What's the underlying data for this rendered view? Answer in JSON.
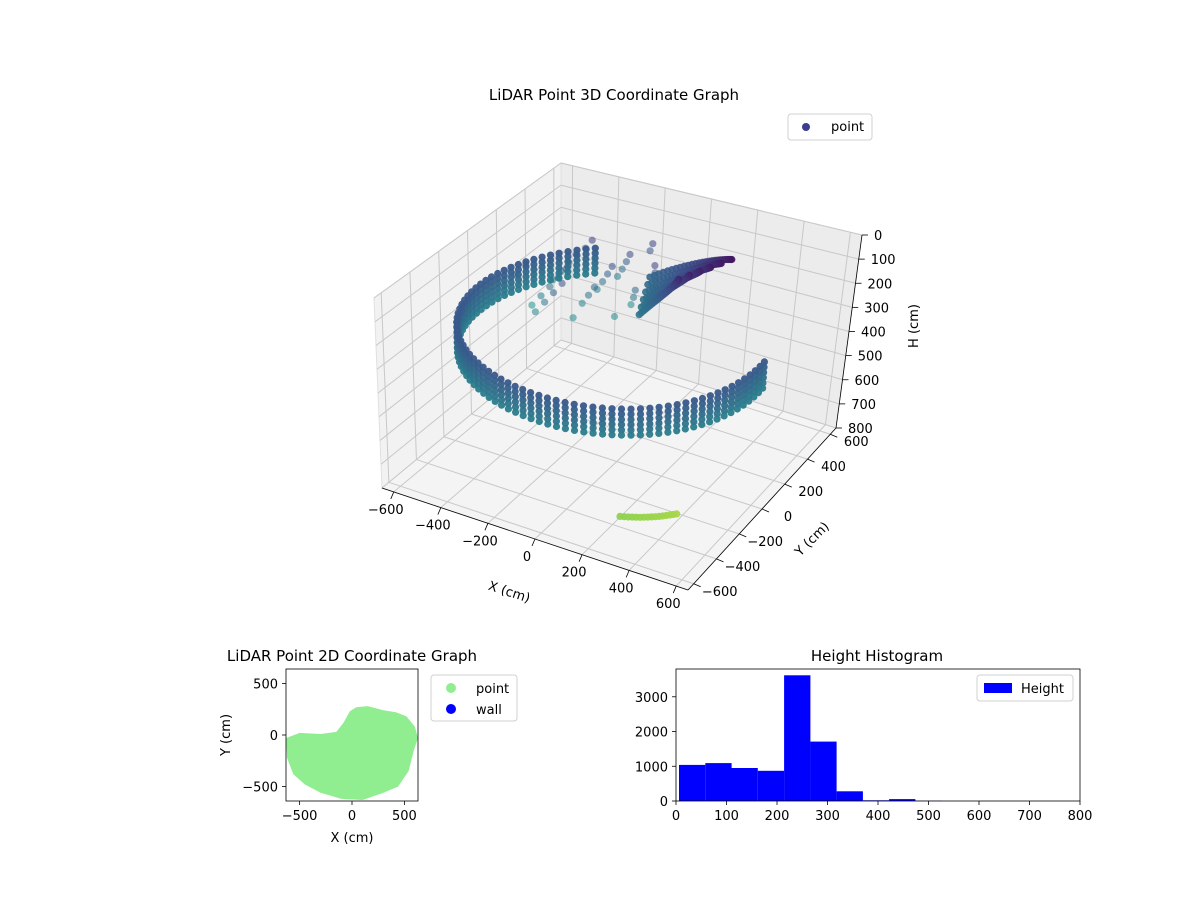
{
  "chart_data": [
    {
      "type": "scatter",
      "projection": "3d",
      "title": "LiDAR Point 3D Coordinate Graph",
      "xlabel": "X (cm)",
      "ylabel": "Y (cm)",
      "zlabel": "H (cm)",
      "xlim": [
        -650,
        650
      ],
      "ylim": [
        -650,
        650
      ],
      "zlim": [
        800,
        0
      ],
      "xticks": [
        -600,
        -400,
        -200,
        0,
        200,
        400,
        600
      ],
      "yticks": [
        -600,
        -400,
        -200,
        0,
        200,
        400,
        600
      ],
      "zticks": [
        0,
        100,
        200,
        300,
        400,
        500,
        600,
        700,
        800
      ],
      "colormap": "viridis",
      "grid": true,
      "legend_position": "upper-right",
      "series": [
        {
          "name": "point",
          "color": "#3b3f8c",
          "description_samples": {
            "ring_radius_cm": 600,
            "ring_height_cm": [
              250,
              300
            ],
            "inner_sweep_height_cm": [
              0,
              200
            ],
            "floor_arc_height_cm": [
              650,
              700
            ]
          }
        }
      ]
    },
    {
      "type": "scatter",
      "title": "LiDAR Point 2D Coordinate Graph",
      "xlabel": "X (cm)",
      "ylabel": "Y (cm)",
      "xlim": [
        -630,
        630
      ],
      "ylim": [
        -640,
        640
      ],
      "xticks": [
        -500,
        0,
        500
      ],
      "yticks": [
        -500,
        0,
        500
      ],
      "legend_position": "outside-right",
      "series": [
        {
          "name": "point",
          "color": "#90ee90",
          "outline": [
            [
              -630,
              -30
            ],
            [
              -500,
              20
            ],
            [
              -300,
              10
            ],
            [
              -150,
              30
            ],
            [
              -80,
              120
            ],
            [
              -20,
              230
            ],
            [
              40,
              270
            ],
            [
              150,
              280
            ],
            [
              300,
              240
            ],
            [
              420,
              220
            ],
            [
              520,
              180
            ],
            [
              600,
              80
            ],
            [
              630,
              -30
            ],
            [
              590,
              -150
            ],
            [
              540,
              -350
            ],
            [
              440,
              -500
            ],
            [
              300,
              -560
            ],
            [
              100,
              -630
            ],
            [
              -100,
              -620
            ],
            [
              -300,
              -560
            ],
            [
              -450,
              -480
            ],
            [
              -560,
              -380
            ],
            [
              -620,
              -220
            ]
          ]
        },
        {
          "name": "wall",
          "color": "#0000ff",
          "points": []
        }
      ]
    },
    {
      "type": "bar",
      "subtype": "histogram",
      "title": "Height Histogram",
      "xlim": [
        0,
        800
      ],
      "ylim": [
        0,
        3800
      ],
      "xticks": [
        0,
        100,
        200,
        300,
        400,
        500,
        600,
        700,
        800
      ],
      "yticks": [
        0,
        1000,
        2000,
        3000
      ],
      "bin_width": 52,
      "bin_edges": [
        0,
        52,
        104,
        156,
        208,
        260,
        312,
        364,
        416,
        468,
        520,
        572,
        624,
        676,
        728,
        780
      ],
      "values": [
        1040,
        1090,
        950,
        870,
        3620,
        1710,
        280,
        20,
        55,
        5,
        0,
        0,
        0,
        0,
        0
      ],
      "color": "#0000ff",
      "legend_position": "upper-right",
      "series": [
        {
          "name": "Height",
          "color": "#0000ff"
        }
      ]
    }
  ]
}
